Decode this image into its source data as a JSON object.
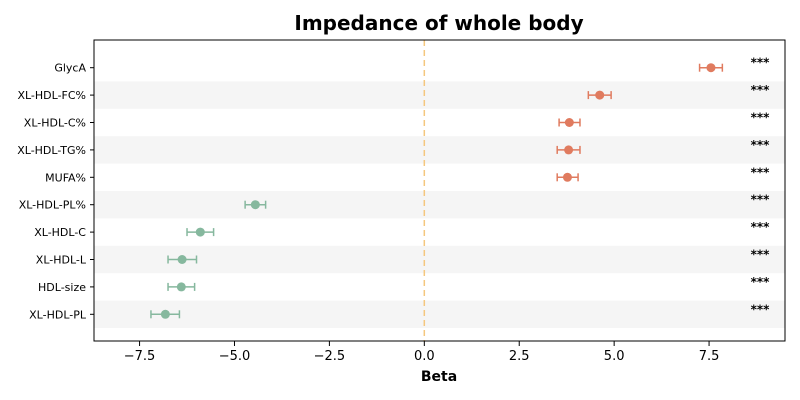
{
  "chart_data": {
    "type": "scatter",
    "title": "Impedance of whole body",
    "xlabel": "Beta",
    "ylabel": "",
    "xlim": [
      -8.7,
      9.5
    ],
    "xticks": [
      -7.5,
      -5.0,
      -2.5,
      0.0,
      2.5,
      5.0,
      7.5
    ],
    "xtick_labels": [
      "−7.5",
      "−5.0",
      "−2.5",
      "0.0",
      "2.5",
      "5.0",
      "7.5"
    ],
    "reference_line": 0,
    "reference_line_style": "dashed",
    "grid": false,
    "legend": "none",
    "alternating_row_shading": true,
    "rows": [
      {
        "label": "GlycA",
        "beta": 7.55,
        "ci_low": 7.25,
        "ci_high": 7.85,
        "sig": "***"
      },
      {
        "label": "XL-HDL-FC%",
        "beta": 4.62,
        "ci_low": 4.32,
        "ci_high": 4.92,
        "sig": "***"
      },
      {
        "label": "XL-HDL-C%",
        "beta": 3.82,
        "ci_low": 3.55,
        "ci_high": 4.1,
        "sig": "***"
      },
      {
        "label": "XL-HDL-TG%",
        "beta": 3.8,
        "ci_low": 3.5,
        "ci_high": 4.1,
        "sig": "***"
      },
      {
        "label": "MUFA%",
        "beta": 3.77,
        "ci_low": 3.5,
        "ci_high": 4.05,
        "sig": "***"
      },
      {
        "label": "XL-HDL-PL%",
        "beta": -4.45,
        "ci_low": -4.72,
        "ci_high": -4.18,
        "sig": "***"
      },
      {
        "label": "XL-HDL-C",
        "beta": -5.9,
        "ci_low": -6.25,
        "ci_high": -5.55,
        "sig": "***"
      },
      {
        "label": "XL-HDL-L",
        "beta": -6.38,
        "ci_low": -6.75,
        "ci_high": -6.0,
        "sig": "***"
      },
      {
        "label": "HDL-size",
        "beta": -6.4,
        "ci_low": -6.75,
        "ci_high": -6.05,
        "sig": "***"
      },
      {
        "label": "XL-HDL-PL",
        "beta": -6.82,
        "ci_low": -7.2,
        "ci_high": -6.45,
        "sig": "***"
      }
    ],
    "colors": {
      "positive": "#e07b5f",
      "negative": "#86b89e",
      "reference_line": "#f5c77e",
      "row_shade": "#f5f5f5",
      "axis": "#000000"
    }
  }
}
